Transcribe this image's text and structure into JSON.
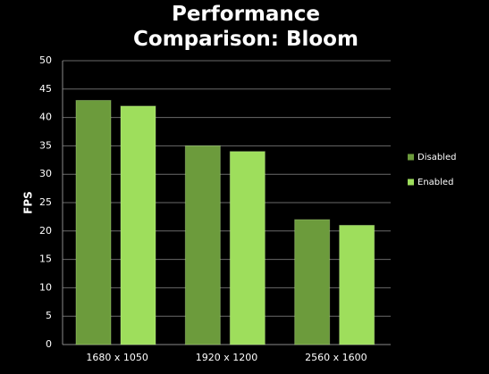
{
  "chart_data": {
    "type": "bar",
    "title": "Performance Comparison: Bloom",
    "y_label": "FPS",
    "categories": [
      "1680 x 1050",
      "1920 x 1200",
      "2560 x 1600"
    ],
    "series": [
      {
        "name": "Disabled",
        "color": "#6c9b3c",
        "values": [
          43,
          35,
          22
        ]
      },
      {
        "name": "Enabled",
        "color": "#9ede5c",
        "values": [
          42,
          34,
          21
        ]
      }
    ],
    "ylim": [
      0,
      50
    ],
    "yticks": [
      0,
      5,
      10,
      15,
      20,
      25,
      30,
      35,
      40,
      45,
      50
    ],
    "grid": true,
    "legend": "right"
  }
}
